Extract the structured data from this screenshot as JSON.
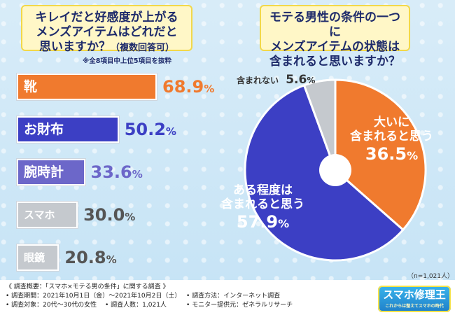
{
  "left_question": {
    "line1": "キレイだと好感度が上がる",
    "line2": "メンズアイテムはどれだと",
    "line3": "思いますか？",
    "suffix": "（複数回答可）"
  },
  "left_note": "※全8項目中上位5項目を抜粋",
  "right_question": {
    "line1": "モテる男性の条件の一つに",
    "line2": "メンズアイテムの状態は",
    "line3": "含まれると思いますか？"
  },
  "colors": {
    "orange": "#f07a2e",
    "blue": "#3c3fc4",
    "purple": "#6c67c9",
    "gray": "#c5c9ce",
    "question_bg": "#fff7c7"
  },
  "chart_data": [
    {
      "type": "bar",
      "orientation": "horizontal",
      "categories": [
        "靴",
        "お財布",
        "腕時計",
        "スマホ",
        "眼鏡"
      ],
      "values": [
        68.9,
        50.2,
        33.6,
        30.0,
        20.8
      ],
      "value_labels": [
        {
          "num": "68.9",
          "unit": "%"
        },
        {
          "num": "50.2",
          "unit": "%"
        },
        {
          "num": "33.6",
          "unit": "%"
        },
        {
          "num": "30.0",
          "unit": "%"
        },
        {
          "num": "20.8",
          "unit": "%"
        }
      ],
      "bar_colors": [
        "#f07a2e",
        "#3c3fc4",
        "#6c67c9",
        "#c5c9ce",
        "#c5c9ce"
      ],
      "label_colors": [
        "#f07a2e",
        "#3c3fc4",
        "#6c67c9",
        "#555555",
        "#555555"
      ],
      "xlim": [
        0,
        100
      ]
    },
    {
      "type": "pie",
      "slices": [
        {
          "label": "大いに含まれると思う",
          "value": 36.5,
          "color": "#f07a2e"
        },
        {
          "label": "ある程度は含まれると思う",
          "value": 57.9,
          "color": "#3c3fc4"
        },
        {
          "label": "含まれない",
          "value": 5.6,
          "color": "#c5c9ce"
        }
      ],
      "labels": {
        "big_l1": "大いに",
        "big_l2": "含まれると思う",
        "big_num": "36.5",
        "big_unit": "%",
        "some_l1": "ある程度は",
        "some_l2": "含まれると思う",
        "some_num": "57.9",
        "some_unit": "%",
        "none_text": "含まれない",
        "none_num": "5.6",
        "none_unit": "%"
      }
    }
  ],
  "sample_size": "（n=1,021人）",
  "footer": {
    "title": "《 調査概要：「スマホ×モテる男の条件」に関する調査 》",
    "period": "• 調査期間：2021年10月1日（金）～2021年10月2日（土）",
    "target": "• 調査対象：20代～30代の女性",
    "method": "• 調査方法：インターネット調査",
    "count": "• 調査人数：1,021人",
    "provider": "• モニター提供元：ゼネラルリサーチ"
  },
  "logo": {
    "text": "スマホ修理王",
    "tagline": "これからは整えてスマホの時代"
  }
}
